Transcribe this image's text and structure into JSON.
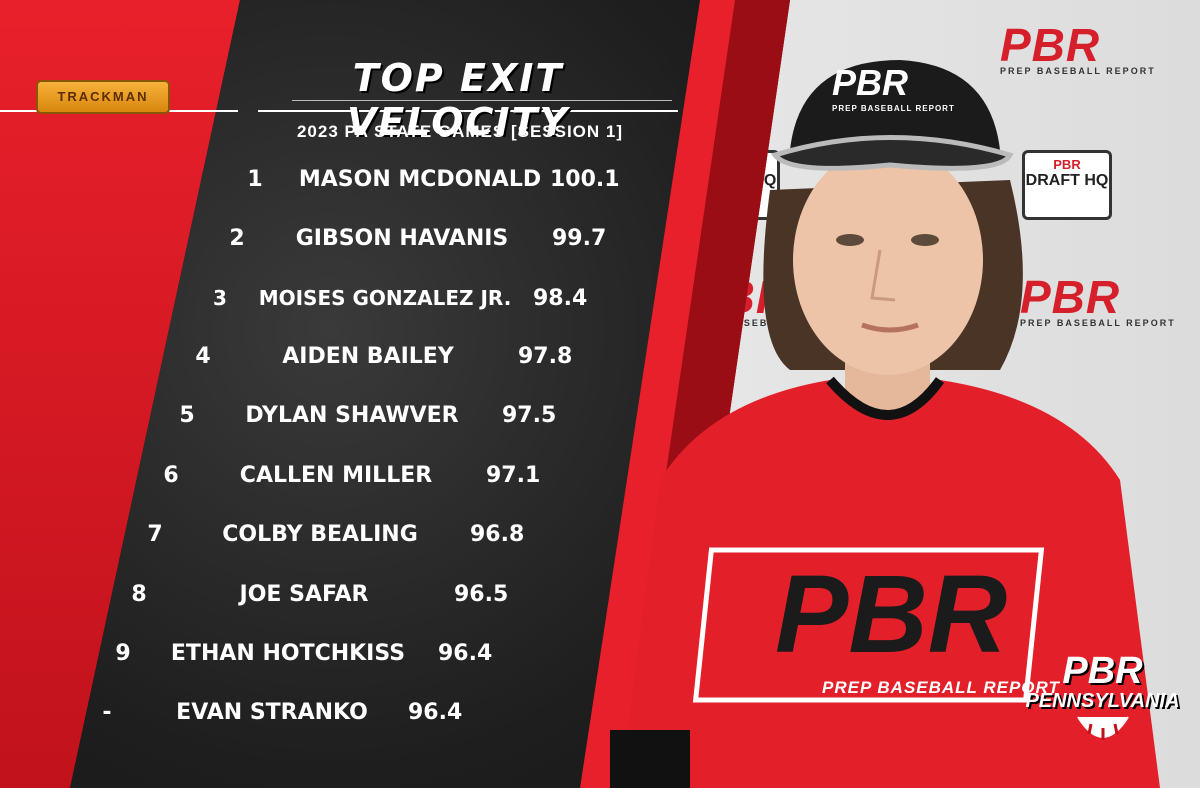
{
  "graphic": {
    "title": "TOP EXIT VELOCITY",
    "subtitle": "2023 PA STATE GAMES [SESSION 1]",
    "sponsor_logo": "TRACKMAN",
    "brand_text": "PBR",
    "brand_tagline": "PREP BASEBALL REPORT",
    "draft_logo_text": "DRAFT HQ",
    "state_logo": {
      "mark": "PBR",
      "state": "PENNSYLVANIA"
    },
    "shirt_logo": {
      "mark": "PBR",
      "tagline": "PREP BASEBALL REPORT"
    },
    "cap_logo": {
      "mark": "PBR",
      "tagline": "PREP BASEBALL REPORT"
    },
    "colors": {
      "accent_red": "#e8202b",
      "dark": "#1e1e1e",
      "text": "#ffffff"
    }
  },
  "leaderboard": [
    {
      "rank": "1",
      "name": "MASON MCDONALD",
      "value": "100.1"
    },
    {
      "rank": "2",
      "name": "GIBSON HAVANIS",
      "value": "99.7"
    },
    {
      "rank": "3",
      "name": "MOISES GONZALEZ JR.",
      "value": "98.4"
    },
    {
      "rank": "4",
      "name": "AIDEN BAILEY",
      "value": "97.8"
    },
    {
      "rank": "5",
      "name": "DYLAN SHAWVER",
      "value": "97.5"
    },
    {
      "rank": "6",
      "name": "CALLEN MILLER",
      "value": "97.1"
    },
    {
      "rank": "7",
      "name": "COLBY BEALING",
      "value": "96.8"
    },
    {
      "rank": "8",
      "name": "JOE SAFAR",
      "value": "96.5"
    },
    {
      "rank": "9",
      "name": "ETHAN HOTCHKISS",
      "value": "96.4"
    },
    {
      "rank": "-",
      "name": "EVAN STRANKO",
      "value": "96.4"
    }
  ]
}
